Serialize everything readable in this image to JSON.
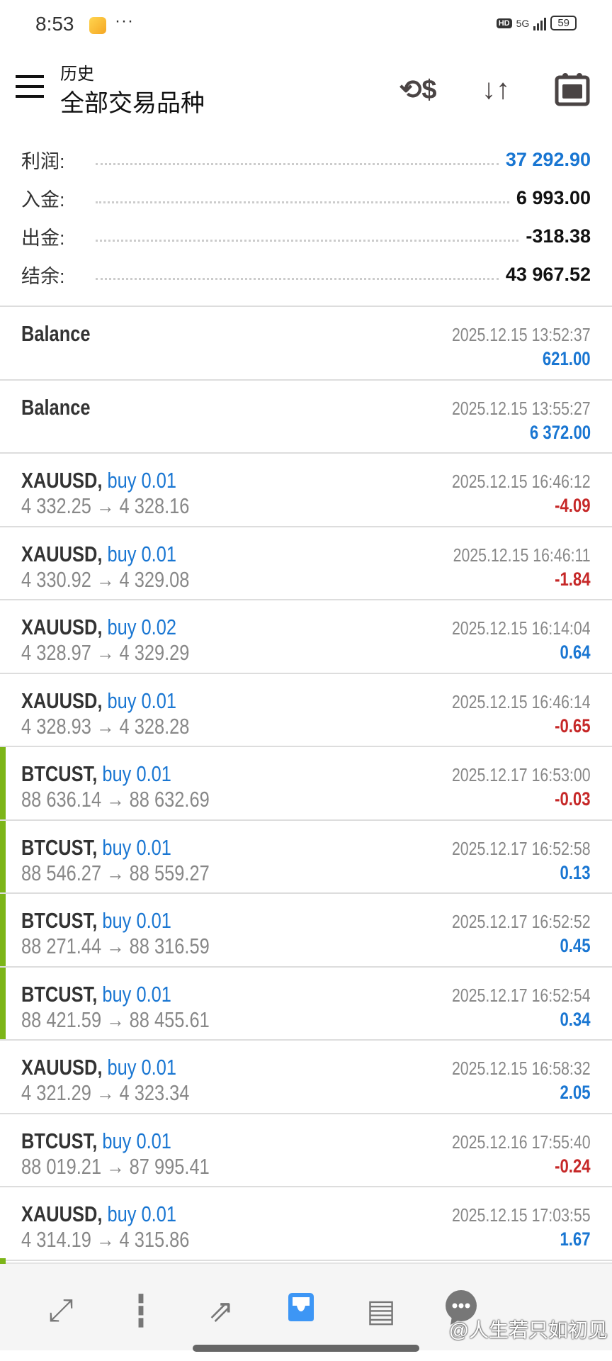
{
  "status_bar": {
    "time": "8:53",
    "network": "5G",
    "hd": "HD",
    "battery": "59"
  },
  "header": {
    "subtitle": "历史",
    "title": "全部交易品种",
    "icons": [
      "currency-exchange-icon",
      "sort-icon",
      "calendar-icon"
    ]
  },
  "summary": [
    {
      "label": "利润:",
      "value": "37 292.90",
      "color": "#1976d2"
    },
    {
      "label": "入金:",
      "value": "6 993.00"
    },
    {
      "label": "出金:",
      "value": "-318.38"
    },
    {
      "label": "结余:",
      "value": "43 967.52"
    }
  ],
  "deals": [
    {
      "symbol": "Balance",
      "side": "",
      "prices": "",
      "time": "2025.12.15 13:52:37",
      "profit": "621.00",
      "sign": "pos",
      "green": false
    },
    {
      "symbol": "Balance",
      "side": "",
      "prices": "",
      "time": "2025.12.15 13:55:27",
      "profit": "6 372.00",
      "sign": "pos",
      "green": false
    },
    {
      "symbol": "XAUUSD,",
      "side": "buy 0.01",
      "prices": "4 332.25 → 4 328.16",
      "time": "2025.12.15 16:46:12",
      "profit": "-4.09",
      "sign": "neg",
      "green": false
    },
    {
      "symbol": "XAUUSD,",
      "side": "buy 0.01",
      "prices": "4 330.92 → 4 329.08",
      "time": "2025.12.15 16:46:11",
      "profit": "-1.84",
      "sign": "neg",
      "green": false
    },
    {
      "symbol": "XAUUSD,",
      "side": "buy 0.02",
      "prices": "4 328.97 → 4 329.29",
      "time": "2025.12.15 16:14:04",
      "profit": "0.64",
      "sign": "pos",
      "green": false
    },
    {
      "symbol": "XAUUSD,",
      "side": "buy 0.01",
      "prices": "4 328.93 → 4 328.28",
      "time": "2025.12.15 16:46:14",
      "profit": "-0.65",
      "sign": "neg",
      "green": false
    },
    {
      "symbol": "BTCUST,",
      "side": "buy 0.01",
      "prices": "88 636.14 → 88 632.69",
      "time": "2025.12.17 16:53:00",
      "profit": "-0.03",
      "sign": "neg",
      "green": true
    },
    {
      "symbol": "BTCUST,",
      "side": "buy 0.01",
      "prices": "88 546.27 → 88 559.27",
      "time": "2025.12.17 16:52:58",
      "profit": "0.13",
      "sign": "pos",
      "green": true
    },
    {
      "symbol": "BTCUST,",
      "side": "buy 0.01",
      "prices": "88 271.44 → 88 316.59",
      "time": "2025.12.17 16:52:52",
      "profit": "0.45",
      "sign": "pos",
      "green": true
    },
    {
      "symbol": "BTCUST,",
      "side": "buy 0.01",
      "prices": "88 421.59 → 88 455.61",
      "time": "2025.12.17 16:52:54",
      "profit": "0.34",
      "sign": "pos",
      "green": true
    },
    {
      "symbol": "XAUUSD,",
      "side": "buy 0.01",
      "prices": "4 321.29 → 4 323.34",
      "time": "2025.12.15 16:58:32",
      "profit": "2.05",
      "sign": "pos",
      "green": false
    },
    {
      "symbol": "BTCUST,",
      "side": "buy 0.01",
      "prices": "88 019.21 → 87 995.41",
      "time": "2025.12.16 17:55:40",
      "profit": "-0.24",
      "sign": "neg",
      "green": false
    },
    {
      "symbol": "XAUUSD,",
      "side": "buy 0.01",
      "prices": "4 314.19 → 4 315.86",
      "time": "2025.12.15 17:03:55",
      "profit": "1.67",
      "sign": "pos",
      "green": false
    }
  ],
  "nav": [
    {
      "name": "quotes-icon",
      "active": false
    },
    {
      "name": "chart-icon",
      "active": false
    },
    {
      "name": "trade-icon",
      "active": false
    },
    {
      "name": "history-icon",
      "active": true
    },
    {
      "name": "news-icon",
      "active": false
    },
    {
      "name": "messages-icon",
      "active": false
    }
  ],
  "colors": {
    "accent": "#1976d2",
    "loss": "#c62828",
    "marker": "#7cb518",
    "nav_active": "#3d96f5"
  },
  "watermark": "@人生若只如初见"
}
